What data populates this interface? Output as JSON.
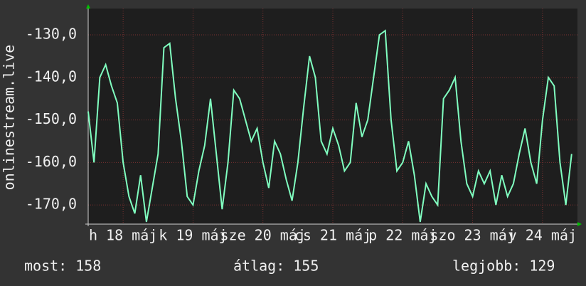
{
  "chart_data": {
    "type": "line",
    "y_label": "onlinestream.live",
    "xlim": [
      0,
      168
    ],
    "xticks": [
      {
        "value": 12,
        "label": "h 18 máj"
      },
      {
        "value": 36,
        "label": "k 19 máj"
      },
      {
        "value": 60,
        "label": "sze 20 máj"
      },
      {
        "value": 84,
        "label": "cs 21 máj"
      },
      {
        "value": 108,
        "label": "p 22 máj"
      },
      {
        "value": 132,
        "label": "szo 23 máj"
      },
      {
        "value": 156,
        "label": "v 24 máj"
      }
    ],
    "ylim": [
      -174.5,
      -123.8
    ],
    "yticks": [
      {
        "value": -130,
        "label": "-130,0"
      },
      {
        "value": -140,
        "label": "-140,0"
      },
      {
        "value": -150,
        "label": "-150,0"
      },
      {
        "value": -160,
        "label": "-160,0"
      },
      {
        "value": -170,
        "label": "-170,0"
      }
    ],
    "grid": true,
    "x": [
      0,
      2,
      4,
      6,
      8,
      10,
      12,
      14,
      16,
      18,
      20,
      22,
      24,
      26,
      28,
      30,
      32,
      34,
      36,
      38,
      40,
      42,
      44,
      46,
      48,
      50,
      52,
      54,
      56,
      58,
      60,
      62,
      64,
      66,
      68,
      70,
      72,
      74,
      76,
      78,
      80,
      82,
      84,
      86,
      88,
      90,
      92,
      94,
      96,
      98,
      100,
      102,
      104,
      106,
      108,
      110,
      112,
      114,
      116,
      118,
      120,
      122,
      124,
      126,
      128,
      130,
      132,
      134,
      136,
      138,
      140,
      142,
      144,
      146,
      148,
      150,
      152,
      154,
      156,
      158,
      160,
      162,
      164,
      166
    ],
    "series": [
      {
        "name": "onlinestream.live",
        "color": "#80ffc0",
        "values": [
          -148,
          -160,
          -140,
          -137,
          -142,
          -146,
          -160,
          -168,
          -172,
          -163,
          -174,
          -166,
          -158,
          -133,
          -132,
          -145,
          -155,
          -168,
          -170,
          -162,
          -156,
          -145,
          -158,
          -171,
          -160,
          -143,
          -145,
          -150,
          -155,
          -152,
          -160,
          -166,
          -155,
          -158,
          -164,
          -169,
          -160,
          -147,
          -135,
          -140,
          -155,
          -158,
          -152,
          -156,
          -162,
          -160,
          -146,
          -154,
          -150,
          -140,
          -130,
          -129,
          -150,
          -162,
          -160,
          -155,
          -163,
          -174,
          -165,
          -168,
          -170,
          -145,
          -143,
          -140,
          -155,
          -165,
          -168,
          -162,
          -165,
          -162,
          -170,
          -163,
          -168,
          -165,
          -158,
          -152,
          -160,
          -165,
          -150,
          -140,
          -142,
          -160,
          -170,
          -158
        ]
      }
    ],
    "stats": [
      {
        "label": "most:",
        "value": 158
      },
      {
        "label": "átlag:",
        "value": 155
      },
      {
        "label": "legjobb:",
        "value": 129
      }
    ]
  }
}
